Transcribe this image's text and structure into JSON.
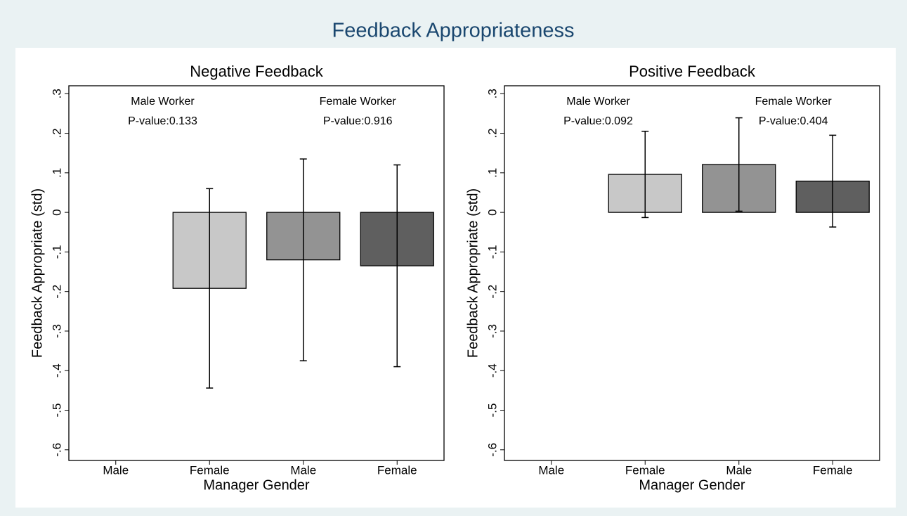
{
  "title": "Feedback Appropriateness",
  "chart_data": [
    {
      "type": "bar",
      "title": "Negative Feedback",
      "xlabel": "Manager Gender",
      "ylabel": "Feedback Appropriate (std)",
      "categories": [
        "Male",
        "Female",
        "Male",
        "Female"
      ],
      "values": [
        0,
        -0.192,
        -0.12,
        -0.135
      ],
      "errors": [
        null,
        0.252,
        0.255,
        0.255
      ],
      "colors": [
        "#ffffff",
        "#c8c8c8",
        "#939393",
        "#5f5f5f"
      ],
      "annotations": [
        "Male Worker",
        "P-value:0.133",
        "Female Worker",
        "P-value:0.916"
      ],
      "ylim": [
        -0.627,
        0.32
      ],
      "yticks": [
        {
          "value": 0.3,
          "label": ".3"
        },
        {
          "value": 0.2,
          "label": ".2"
        },
        {
          "value": 0.1,
          "label": ".1"
        },
        0,
        {
          "value": -0.1,
          "label": "-.1"
        },
        {
          "value": -0.2,
          "label": "-.2"
        },
        {
          "value": -0.3,
          "label": "-.3"
        },
        {
          "value": -0.4,
          "label": "-.4"
        },
        {
          "value": -0.5,
          "label": "-.5"
        },
        {
          "value": -0.6,
          "label": "-.6"
        }
      ]
    },
    {
      "type": "bar",
      "title": "Positive Feedback",
      "xlabel": "Manager Gender",
      "ylabel": "Feedback Appropriate (std)",
      "categories": [
        "Male",
        "Female",
        "Male",
        "Female"
      ],
      "values": [
        0,
        0.096,
        0.121,
        0.079
      ],
      "errors": [
        null,
        0.109,
        0.118,
        0.116
      ],
      "colors": [
        "#ffffff",
        "#c8c8c8",
        "#939393",
        "#5f5f5f"
      ],
      "annotations": [
        "Male Worker",
        "P-value:0.092",
        "Female Worker",
        "P-value:0.404"
      ],
      "ylim": [
        -0.627,
        0.32
      ],
      "yticks": [
        {
          "value": 0.3,
          "label": ".3"
        },
        {
          "value": 0.2,
          "label": ".2"
        },
        {
          "value": 0.1,
          "label": ".1"
        },
        0,
        {
          "value": -0.1,
          "label": "-.1"
        },
        {
          "value": -0.2,
          "label": "-.2"
        },
        {
          "value": -0.3,
          "label": "-.3"
        },
        {
          "value": -0.4,
          "label": "-.4"
        },
        {
          "value": -0.5,
          "label": "-.5"
        },
        {
          "value": -0.6,
          "label": "-.6"
        }
      ]
    }
  ]
}
